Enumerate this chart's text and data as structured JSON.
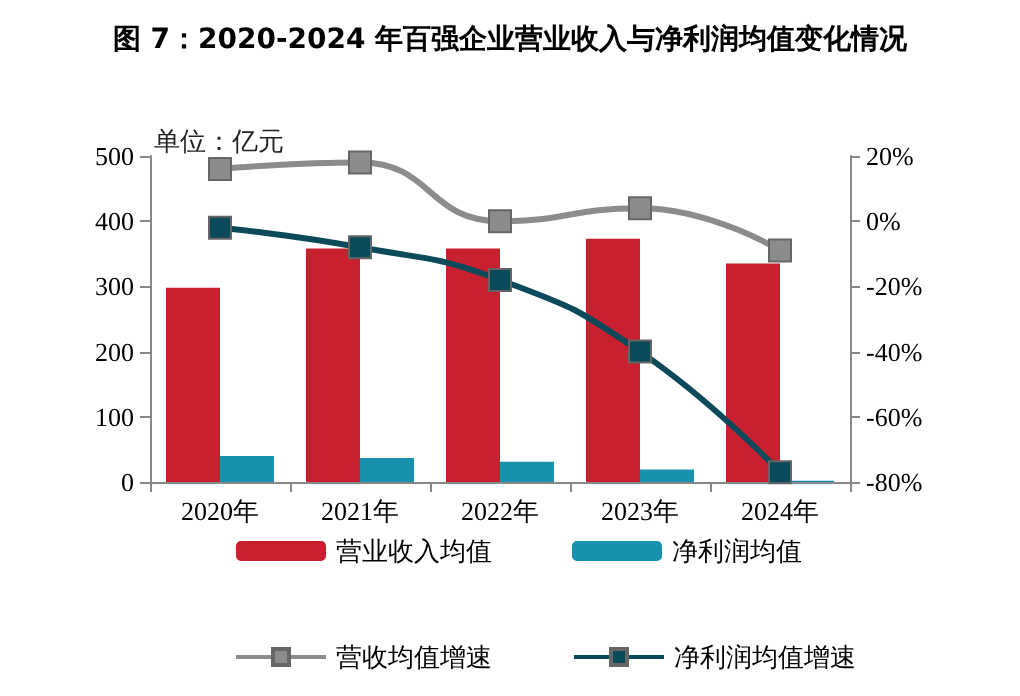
{
  "chart_data": {
    "type": "bar",
    "title": "图 7：2020-2024 年百强企业营业收入与净利润均值变化情况",
    "annotations": [
      "单位：亿元"
    ],
    "categories": [
      "2020年",
      "2021年",
      "2022年",
      "2023年",
      "2024年"
    ],
    "series": [
      {
        "name": "营业收入均值",
        "color": "#c8202f",
        "values": [
          298,
          358,
          358,
          373,
          335
        ]
      },
      {
        "name": "净利润均值",
        "color": "#1791ae",
        "values": [
          40,
          37,
          31,
          19,
          2
        ]
      },
      {
        "name": "营收均值增速",
        "type": "line",
        "axis": "y2",
        "color": "#8c8c8c",
        "marker": "square",
        "values": [
          16,
          18,
          0,
          4,
          -9
        ]
      },
      {
        "name": "净利润均值增速",
        "type": "line",
        "axis": "y2",
        "color": "#0b4a5b",
        "marker": "square",
        "values": [
          -2,
          -8,
          -18,
          -40,
          -77
        ]
      }
    ],
    "ylim": [
      0,
      500
    ],
    "yticks": [
      0,
      100,
      200,
      300,
      400,
      500
    ],
    "y2lim": [
      -80,
      20
    ],
    "y2ticks": [
      {
        "value": -80,
        "label": "-80%"
      },
      {
        "value": -60,
        "label": "-60%"
      },
      {
        "value": -40,
        "label": "-40%"
      },
      {
        "value": -20,
        "label": "-20%"
      },
      {
        "value": 0,
        "label": "0%"
      },
      {
        "value": 20,
        "label": "20%"
      }
    ],
    "grid": false,
    "legend": "bottom"
  }
}
